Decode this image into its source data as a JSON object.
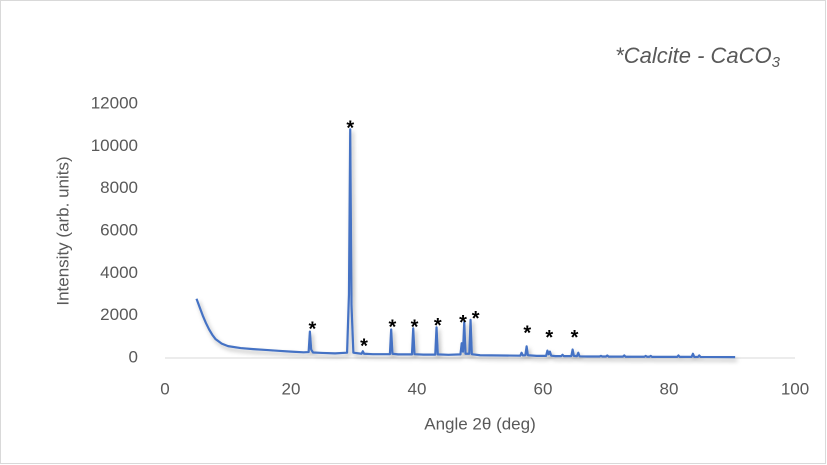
{
  "chart_data": {
    "type": "line",
    "annotation": {
      "text": "*Calcite - CaCO",
      "subscript": "3"
    },
    "y_label": "Intensity (arb. units)",
    "x_label": "Angle 2θ (deg)",
    "color": "#4472c4",
    "x": [
      5,
      5.5,
      6,
      6.5,
      7,
      7.5,
      8,
      9,
      10,
      12,
      14,
      16,
      18,
      20,
      22,
      22.8,
      23.0,
      23.2,
      23.5,
      25,
      27,
      28.9,
      29.2,
      29.4,
      29.6,
      29.9,
      31.2,
      31.4,
      31.6,
      33,
      35.7,
      35.9,
      36.1,
      37,
      39.2,
      39.4,
      39.6,
      41,
      42.9,
      43.1,
      43.3,
      45,
      46.9,
      47.1,
      47.3,
      47.5,
      47.7,
      48.3,
      48.5,
      48.7,
      50,
      56.4,
      56.6,
      56.8,
      57.2,
      57.4,
      57.6,
      59,
      60.5,
      60.7,
      60.9,
      61.1,
      61.3,
      62,
      62.9,
      63.1,
      63.3,
      64.5,
      64.7,
      64.9,
      65.4,
      65.6,
      65.8,
      67,
      69,
      69.2,
      69.4,
      70,
      70.2,
      70.4,
      72.7,
      72.9,
      73.1,
      76.1,
      76.3,
      76.5,
      76.9,
      77.1,
      77.3,
      81.3,
      81.5,
      81.7,
      83.6,
      83.8,
      84,
      84.6,
      84.8,
      85,
      88,
      90.5
    ],
    "values": [
      2800,
      2400,
      2000,
      1650,
      1350,
      1100,
      900,
      680,
      560,
      470,
      420,
      380,
      340,
      300,
      270,
      280,
      1250,
      400,
      260,
      240,
      220,
      250,
      3000,
      10800,
      2500,
      250,
      200,
      320,
      200,
      180,
      180,
      1350,
      200,
      170,
      170,
      1400,
      180,
      160,
      160,
      1450,
      170,
      150,
      170,
      700,
      300,
      1700,
      200,
      200,
      1800,
      180,
      130,
      110,
      250,
      120,
      130,
      550,
      130,
      100,
      100,
      350,
      180,
      300,
      110,
      90,
      90,
      150,
      90,
      90,
      400,
      100,
      90,
      250,
      80,
      70,
      70,
      100,
      70,
      70,
      120,
      65,
      65,
      120,
      60,
      60,
      100,
      60,
      60,
      100,
      55,
      55,
      120,
      55,
      55,
      200,
      55,
      50,
      120,
      50,
      45,
      40
    ],
    "peak_labels": [
      {
        "x": 23.4,
        "y": 1600,
        "text": "*"
      },
      {
        "x": 29.4,
        "y": 11100,
        "text": "*"
      },
      {
        "x": 31.6,
        "y": 800,
        "text": "*"
      },
      {
        "x": 36.1,
        "y": 1700,
        "text": "*"
      },
      {
        "x": 39.6,
        "y": 1700,
        "text": "*"
      },
      {
        "x": 43.3,
        "y": 1750,
        "text": "*"
      },
      {
        "x": 47.3,
        "y": 1900,
        "text": "*"
      },
      {
        "x": 49.3,
        "y": 2100,
        "text": "*"
      },
      {
        "x": 57.5,
        "y": 1400,
        "text": "*"
      },
      {
        "x": 61.0,
        "y": 1200,
        "text": "*"
      },
      {
        "x": 65.0,
        "y": 1200,
        "text": "*"
      }
    ],
    "xlim": [
      0,
      100
    ],
    "xticks": [
      0,
      20,
      40,
      60,
      80,
      100
    ],
    "ylim": [
      0,
      12000
    ],
    "yticks": [
      0,
      2000,
      4000,
      6000,
      8000,
      10000,
      12000
    ],
    "grid": false
  }
}
